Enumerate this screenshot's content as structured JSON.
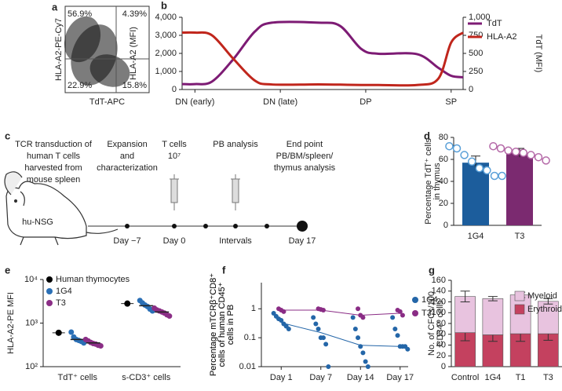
{
  "chart_data": [
    {
      "type": "flow",
      "panel": "a",
      "xlabel": "TdT-APC",
      "ylabel": "HLA-A2-PE-Cy7",
      "values": [
        56.9,
        4.39,
        22.9,
        15.8
      ],
      "value_labels": [
        "56.9%",
        "4.39%",
        "22.9%",
        "15.8%"
      ]
    },
    {
      "type": "line",
      "panel": "b",
      "x": [
        -0.15,
        0,
        0.2,
        0.45,
        0.7,
        0.9,
        1.45,
        1.7,
        1.95,
        2.15,
        2.6,
        2.85,
        3.0,
        3.14
      ],
      "xlim": [
        -0.15,
        3.14
      ],
      "xticks": [
        {
          "value": 0,
          "label": "DN (early)"
        },
        {
          "value": 1,
          "label": "DN (late)"
        },
        {
          "value": 2,
          "label": "DP"
        },
        {
          "value": 3,
          "label": "SP"
        }
      ],
      "ylabel": "HLA-A2 (MFI)",
      "y2label": "TdT (MFI)",
      "ylim": [
        0,
        4000
      ],
      "yticks": [
        0,
        {
          "value": 1000,
          "label": "1,000"
        },
        {
          "value": 2000,
          "label": "2,000"
        },
        {
          "value": 3000,
          "label": "3,000"
        },
        {
          "value": 4000,
          "label": "4,000"
        }
      ],
      "y2lim": [
        0,
        1000
      ],
      "y2ticks": [
        0,
        250,
        500,
        750,
        {
          "value": 1000,
          "label": "1,000"
        }
      ],
      "legend": "upper right",
      "series": [
        {
          "name": "TdT",
          "color": "#7d1b74",
          "axis": "y2",
          "values": [
            75,
            75,
            110,
            420,
            800,
            925,
            925,
            880,
            560,
            495,
            490,
            300,
            190,
            170
          ]
        },
        {
          "name": "HLA-A2",
          "color": "#c0261c",
          "values": [
            3150,
            3150,
            3000,
            1700,
            500,
            280,
            280,
            270,
            250,
            250,
            250,
            600,
            2600,
            3150
          ]
        }
      ]
    },
    {
      "type": "bar",
      "panel": "d",
      "categories": [
        "1G4",
        "T3"
      ],
      "values": [
        57,
        66
      ],
      "errors": [
        6,
        4
      ],
      "colors": [
        "#1c5d9c",
        "#7b2a70"
      ],
      "point_colors": [
        "#5aa0d8",
        "#b56aa8"
      ],
      "points": [
        [
          72,
          70,
          64,
          58,
          52,
          50,
          45,
          45
        ],
        [
          72,
          70,
          68,
          67,
          66,
          64,
          62,
          59
        ]
      ],
      "ylim": [
        0,
        80
      ],
      "yticks": [
        0,
        20,
        40,
        60,
        80
      ],
      "ylabel": [
        "Percentage TdT⁺ cells",
        "in thymus"
      ]
    },
    {
      "type": "dot",
      "panel": "e",
      "categories": [
        "TdT⁺ cells",
        "s-CD3⁺ cells"
      ],
      "log_scale": true,
      "ylim": [
        100,
        10000
      ],
      "yticks": [
        {
          "value": 100,
          "label": "10²"
        },
        {
          "value": 1000,
          "label": "10³"
        },
        {
          "value": 10000,
          "label": "10⁴"
        }
      ],
      "ylabel": "HLA-A2-PE MFI",
      "legend": "upper left",
      "series": [
        {
          "name": "Human thymocytes",
          "color": "#000000",
          "values": [
            600,
            2800
          ]
        },
        {
          "name": "1G4",
          "color": "#2a6fb5",
          "values": [
            420,
            2500
          ],
          "points": [
            [
              620,
              480,
              420,
              400,
              380,
              350
            ],
            [
              3300,
              2900,
              2600,
              2400,
              2100,
              1900
            ]
          ]
        },
        {
          "name": "T3",
          "color": "#8b2e86",
          "values": [
            350,
            1800
          ],
          "points": [
            [
              420,
              390,
              360,
              340,
              330,
              310,
              300
            ],
            [
              2200,
              2000,
              1900,
              1800,
              1700,
              1550,
              1450
            ]
          ]
        }
      ]
    },
    {
      "type": "line",
      "panel": "f",
      "categories": [
        "Day 1",
        "Day 7",
        "Day 14",
        "Day 17"
      ],
      "log_scale": true,
      "ylim": [
        0.01,
        8
      ],
      "yticks": [
        0.01,
        0.1,
        1
      ],
      "ylabel": [
        "Percentage mTCRβ⁺CD8⁺",
        "cells of human CD45⁺",
        "cells in PB"
      ],
      "legend": "right",
      "series": [
        {
          "name": "1G4",
          "color": "#2466a8",
          "values": [
            0.33,
            0.15,
            0.055,
            0.05
          ],
          "points": [
            [
              0.7,
              0.55,
              0.45,
              0.4,
              0.3,
              0.25,
              0.2
            ],
            [
              0.5,
              0.3,
              0.2,
              0.1,
              0.1,
              0.06,
              0.01
            ],
            [
              0.5,
              0.2,
              0.1,
              0.05,
              0.03,
              0.015,
              0.01
            ],
            [
              0.5,
              0.2,
              0.12,
              0.05,
              0.05,
              0.05,
              0.04
            ]
          ]
        },
        {
          "name": "T3",
          "color": "#8a2c85",
          "values": [
            0.9,
            0.9,
            0.6,
            0.7
          ],
          "points": [
            [
              1,
              0.9,
              0.8
            ],
            [
              1,
              0.95,
              0.9
            ],
            [
              1,
              0.6,
              0.5
            ],
            [
              0.9,
              0.8,
              0.6
            ]
          ]
        }
      ]
    },
    {
      "type": "stacked_bar",
      "panel": "g",
      "categories": [
        "Control",
        "1G4",
        "T1",
        "T3"
      ],
      "ylim": [
        0,
        160
      ],
      "yticks": [
        0,
        20,
        40,
        60,
        80,
        100,
        120,
        140,
        160
      ],
      "ylabel": [
        "No. of CFCs/100",
        "CD34⁺ cells"
      ],
      "legend": "upper right",
      "series": [
        {
          "name": "Erythroid",
          "color": "#c4415f",
          "values": [
            63,
            59,
            61,
            61
          ],
          "errors": [
            15,
            12,
            14,
            12
          ]
        },
        {
          "name": "Myeloid",
          "color": "#e8c3df",
          "values": [
            67,
            67,
            72,
            60
          ],
          "errors": [
            10,
            4,
            5,
            5
          ]
        }
      ]
    }
  ],
  "timeline": {
    "panel": "c",
    "mouse_label": "hu-NSG",
    "steps": [
      [
        "TCR transduction of",
        "human T cells",
        "harvested from",
        "mouse spleen"
      ],
      [
        "Expansion",
        "and",
        "characterization"
      ],
      [
        "T cells",
        "10⁷"
      ],
      [
        "PB analysis"
      ],
      [
        "End point",
        "PB/BM/spleen/",
        "thymus analysis"
      ]
    ],
    "timepoints": [
      "Day −7",
      "Day 0",
      "Intervals",
      "Day 17"
    ]
  }
}
